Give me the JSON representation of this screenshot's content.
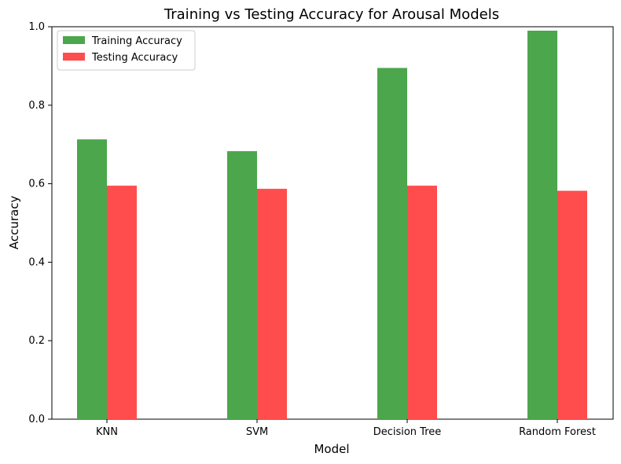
{
  "chart_data": {
    "type": "bar",
    "title": "Training vs Testing Accuracy for Arousal Models",
    "xlabel": "Model",
    "ylabel": "Accuracy",
    "categories": [
      "KNN",
      "SVM",
      "Decision Tree",
      "Random Forest"
    ],
    "series": [
      {
        "name": "Training Accuracy",
        "values": [
          0.713,
          0.683,
          0.895,
          0.99
        ],
        "color": "#4ca64c"
      },
      {
        "name": "Testing Accuracy",
        "values": [
          0.595,
          0.587,
          0.595,
          0.582
        ],
        "color": "#ff4d4d"
      }
    ],
    "ylim": [
      0,
      1
    ],
    "yticks": [
      "0.0",
      "0.2",
      "0.4",
      "0.6",
      "0.8",
      "1.0"
    ],
    "legend_position": "top-left",
    "grid": false
  }
}
